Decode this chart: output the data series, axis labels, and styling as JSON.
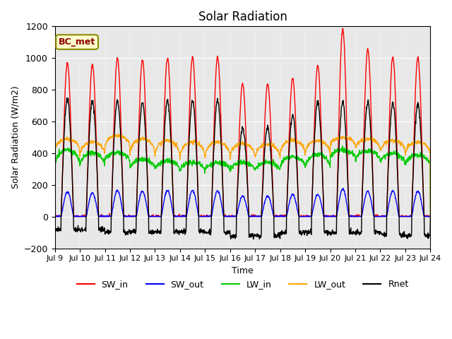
{
  "title": "Solar Radiation",
  "xlabel": "Time",
  "ylabel": "Solar Radiation (W/m2)",
  "ylim": [
    -200,
    1200
  ],
  "yticks": [
    -200,
    0,
    200,
    400,
    600,
    800,
    1000,
    1200
  ],
  "n_days": 15,
  "xtick_labels": [
    "Jul 9",
    "Jul 10",
    "Jul 11",
    "Jul 12",
    "Jul 13",
    "Jul 14",
    "Jul 15",
    "Jul 16",
    "Jul 17",
    "Jul 18",
    "Jul 19",
    "Jul 20",
    "Jul 21",
    "Jul 22",
    "Jul 23",
    "Jul 24"
  ],
  "colors": {
    "SW_in": "#FF0000",
    "SW_out": "#0000FF",
    "LW_in": "#00CC00",
    "LW_out": "#FFA500",
    "Rnet": "#000000"
  },
  "annotation": "BC_met",
  "annotation_color": "#8B0000",
  "annotation_bg": "#FFFFCC",
  "bg_color": "#E8E8E8",
  "sw_in_peaks": [
    970,
    960,
    1000,
    990,
    1000,
    1010,
    1005,
    840,
    835,
    870,
    950,
    1180,
    1055,
    1005,
    1000
  ],
  "sw_out_peaks": [
    155,
    150,
    165,
    160,
    165,
    165,
    163,
    130,
    130,
    140,
    140,
    175,
    160,
    160,
    160
  ],
  "lw_in_base": [
    330,
    315,
    350,
    300,
    290,
    290,
    290,
    290,
    290,
    310,
    300,
    370,
    350,
    330,
    320
  ],
  "lw_in_peaks": [
    420,
    405,
    405,
    360,
    350,
    340,
    340,
    340,
    340,
    380,
    395,
    420,
    415,
    400,
    390
  ],
  "lw_out_base": [
    380,
    360,
    410,
    360,
    340,
    340,
    340,
    340,
    340,
    365,
    360,
    430,
    390,
    375,
    365
  ],
  "lw_out_peaks": [
    490,
    470,
    510,
    490,
    480,
    470,
    470,
    460,
    455,
    480,
    480,
    500,
    490,
    480,
    470
  ],
  "rnet_peaks": [
    740,
    730,
    730,
    720,
    730,
    730,
    730,
    560,
    560,
    640,
    720,
    720,
    720,
    715,
    710
  ],
  "rnet_night": [
    -80,
    -80,
    -100,
    -100,
    -95,
    -95,
    -100,
    -120,
    -120,
    -100,
    -100,
    -100,
    -100,
    -115,
    -120
  ]
}
